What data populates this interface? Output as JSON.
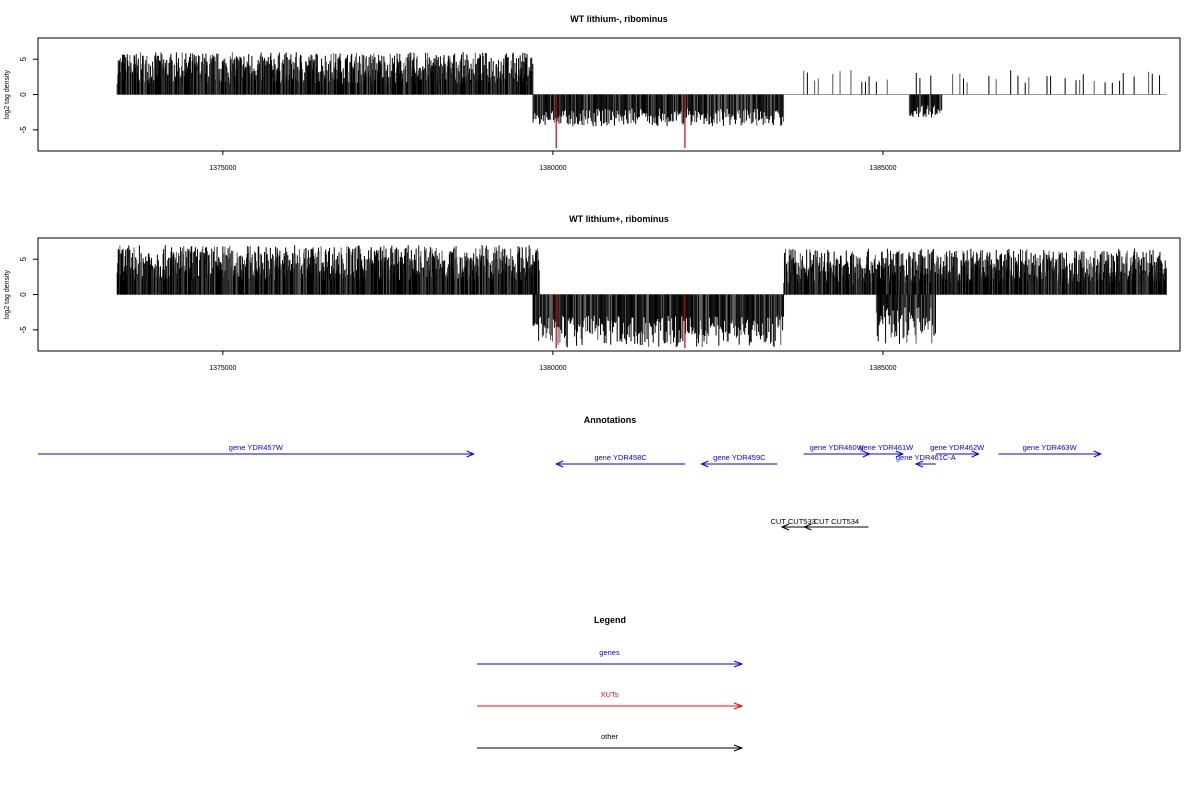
{
  "chart_data": [
    {
      "type": "bar",
      "title": "WT lithium-, ribominus",
      "ylabel": "log2 tag density",
      "xlim": [
        1372200,
        1389500
      ],
      "ylim": [
        -8,
        8
      ],
      "xticks": [
        1375000,
        1380000,
        1385000
      ],
      "yticks": [
        -5,
        0,
        5
      ],
      "strand_segments": [
        {
          "x_range": [
            1373400,
            1379700
          ],
          "sign": 1,
          "y_range": [
            1.5,
            6
          ]
        },
        {
          "x_range": [
            1379700,
            1383500
          ],
          "sign": -1,
          "y_range": [
            -2,
            -4.5
          ]
        },
        {
          "x_range": [
            1383800,
            1389300
          ],
          "sign": 1,
          "y_range": [
            1.5,
            3.5
          ],
          "sparse": true
        },
        {
          "x_range": [
            1385400,
            1385900
          ],
          "sign": -1,
          "y_range": [
            -1.5,
            -3.3
          ]
        }
      ],
      "highlight_values": [
        {
          "x": 1380050,
          "y": -7.6
        },
        {
          "x": 1382000,
          "y": -7.6
        }
      ],
      "grid": false
    },
    {
      "type": "bar",
      "title": "WT lithium+, ribominus",
      "ylabel": "log2 tag density",
      "xlim": [
        1372200,
        1389500
      ],
      "ylim": [
        -8,
        8
      ],
      "xticks": [
        1375000,
        1380000,
        1385000
      ],
      "yticks": [
        -5,
        0,
        5
      ],
      "strand_segments": [
        {
          "x_range": [
            1373400,
            1379800
          ],
          "sign": 1,
          "y_range": [
            2,
            7
          ]
        },
        {
          "x_range": [
            1379700,
            1383500
          ],
          "sign": -1,
          "y_range": [
            -3,
            -7.5
          ]
        },
        {
          "x_range": [
            1383500,
            1389300
          ],
          "sign": 1,
          "y_range": [
            1.5,
            6.5
          ]
        },
        {
          "x_range": [
            1384900,
            1385800
          ],
          "sign": -1,
          "y_range": [
            -1.5,
            -7
          ]
        }
      ],
      "highlight_values": [
        {
          "x": 1380050,
          "y": -7.6
        },
        {
          "x": 1382000,
          "y": -7.6
        }
      ],
      "grid": false
    }
  ],
  "annotations": {
    "title": "Annotations",
    "genes": [
      {
        "label": "gene YDR457W",
        "start": 1372200,
        "end": 1378800,
        "strand": "+",
        "track": 0
      },
      {
        "label": "gene YDR458C",
        "start": 1380050,
        "end": 1382000,
        "strand": "-",
        "track": 1
      },
      {
        "label": "gene YDR459C",
        "start": 1382250,
        "end": 1383400,
        "strand": "-",
        "track": 1
      },
      {
        "label": "gene YDR460W",
        "start": 1383800,
        "end": 1384800,
        "strand": "+",
        "track": 0
      },
      {
        "label": "gene YDR461W",
        "start": 1384800,
        "end": 1385300,
        "strand": "+",
        "track": 0
      },
      {
        "label": "gene YDR461C-A",
        "start": 1385500,
        "end": 1385800,
        "strand": "-",
        "track": 1
      },
      {
        "label": "gene YDR462W",
        "start": 1385800,
        "end": 1386450,
        "strand": "+",
        "track": 0
      },
      {
        "label": "gene YDR463W",
        "start": 1386750,
        "end": 1388300,
        "strand": "+",
        "track": 0
      }
    ],
    "cuts": [
      {
        "label": "CUT CUT533",
        "start": 1383470,
        "end": 1383810,
        "strand": "-"
      },
      {
        "label": "CUT CUT534",
        "start": 1383810,
        "end": 1384780,
        "strand": "-"
      }
    ]
  },
  "legend": {
    "title": "Legend",
    "items": [
      {
        "label": "genes",
        "color": "#0000ff"
      },
      {
        "label": "XUTs",
        "color": "#ff0000"
      },
      {
        "label": "other",
        "color": "#000000"
      }
    ]
  },
  "colors": {
    "gene": "#0000ff",
    "xut": "#ff0000",
    "other": "#000000",
    "bar": "#000000",
    "highlight": "#cc0000",
    "zero_line": "#999999"
  }
}
